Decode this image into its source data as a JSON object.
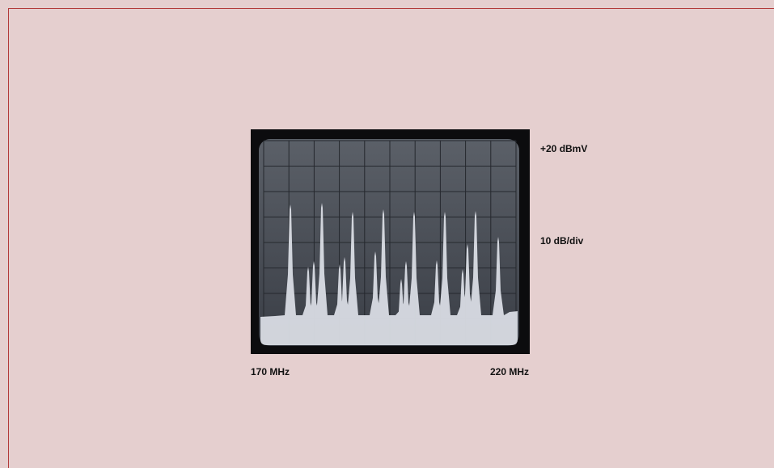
{
  "labels": {
    "top_right": "+20 dBmV",
    "scale": "10 dB/div",
    "x_start": "170 MHz",
    "x_end": "220 MHz"
  }
}
